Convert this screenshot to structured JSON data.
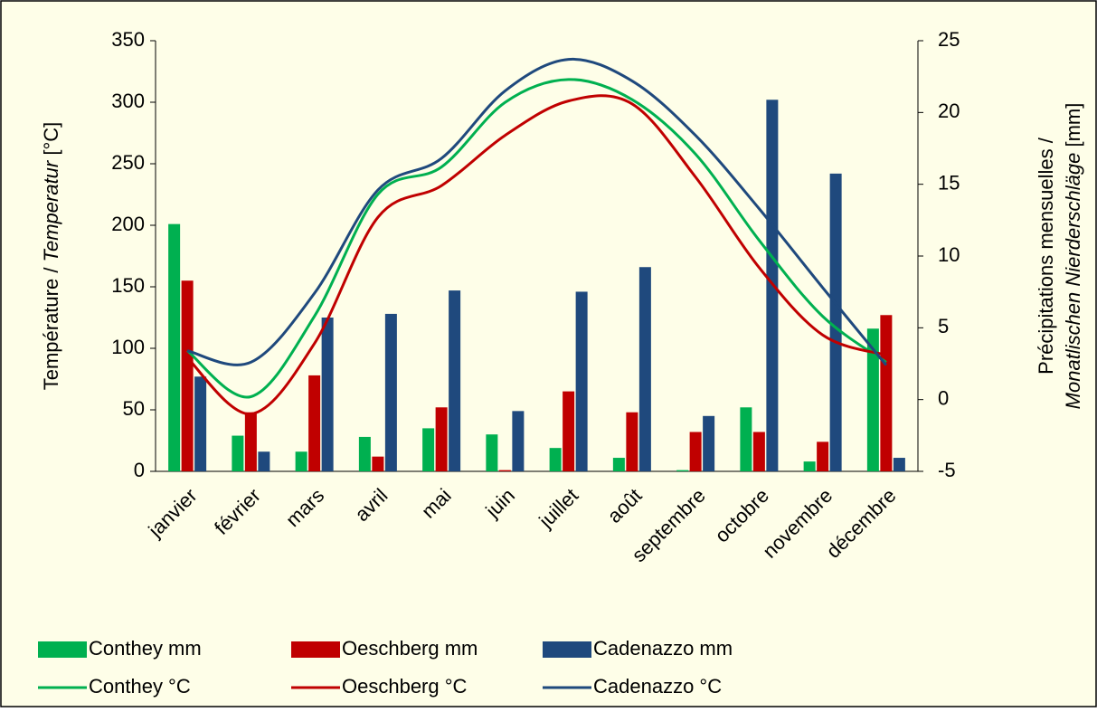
{
  "chart_data": {
    "type": "bar-line",
    "y_label": [
      {
        "text": "Température / ",
        "italic": false
      },
      {
        "text": "Temperatur",
        "italic": true
      },
      {
        "text": " [°C]",
        "italic": false
      }
    ],
    "y2_label_line1": "Précipitations mensuelles /",
    "y2_label_line2": [
      {
        "text": "Monatlischen Nierderschläge",
        "italic": true
      },
      {
        "text": " [mm]",
        "italic": false
      }
    ],
    "categories": [
      "janvier",
      "février",
      "mars",
      "avril",
      "mai",
      "juin",
      "juillet",
      "août",
      "septembre",
      "octobre",
      "novembre",
      "décembre"
    ],
    "ylim": [
      0,
      350
    ],
    "yticks": [
      0,
      50,
      100,
      150,
      200,
      250,
      300,
      350
    ],
    "y2lim": [
      -5,
      25
    ],
    "y2ticks": [
      -5,
      0,
      5,
      10,
      15,
      20,
      25
    ],
    "series": [
      {
        "name": "Conthey mm",
        "kind": "bar",
        "color": "#00b050",
        "values": [
          201,
          29,
          16,
          28,
          35,
          30,
          19,
          11,
          1,
          52,
          8,
          116
        ]
      },
      {
        "name": "Oeschberg mm",
        "kind": "bar",
        "color": "#c00000",
        "values": [
          155,
          48,
          78,
          12,
          52,
          1,
          65,
          48,
          32,
          32,
          24,
          127
        ]
      },
      {
        "name": "Cadenazzo mm",
        "kind": "bar",
        "color": "#1f497d",
        "values": [
          77,
          16,
          125,
          128,
          147,
          49,
          146,
          166,
          45,
          302,
          242,
          11
        ]
      },
      {
        "name": "Conthey °C",
        "kind": "line",
        "axis": "y2",
        "color": "#00b050",
        "values": [
          3.4,
          0.2,
          5.8,
          14.3,
          16.2,
          20.7,
          22.3,
          20.9,
          17.1,
          11.1,
          5.8,
          2.6
        ]
      },
      {
        "name": "Oeschberg °C",
        "kind": "line",
        "axis": "y2",
        "color": "#c00000",
        "values": [
          2.9,
          -1.0,
          3.9,
          12.7,
          14.9,
          18.4,
          20.8,
          20.6,
          15.5,
          9.2,
          4.5,
          3.1
        ]
      },
      {
        "name": "Cadenazzo °C",
        "kind": "line",
        "axis": "y2",
        "color": "#1f497d",
        "values": [
          3.4,
          2.6,
          7.4,
          14.6,
          16.8,
          21.5,
          23.7,
          22.2,
          18.4,
          13.3,
          7.8,
          2.4
        ]
      }
    ]
  }
}
